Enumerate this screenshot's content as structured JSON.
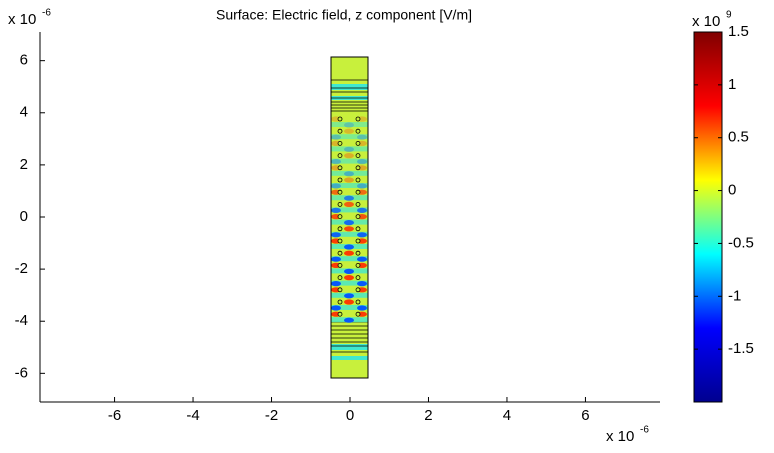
{
  "chart_data": {
    "type": "surface",
    "title": "Surface: Electric field, z component [V/m]",
    "x_exponent": {
      "base": "x 10",
      "power": "-6"
    },
    "y_exponent": {
      "base": "x 10",
      "power": "-6"
    },
    "xlim": [
      -7.9,
      7.9
    ],
    "xticks": [
      -6,
      -4,
      -2,
      0,
      2,
      4,
      6
    ],
    "ylim": [
      -7.1,
      7.1
    ],
    "yticks": [
      -6,
      -4,
      -2,
      0,
      2,
      4,
      6
    ],
    "colorbar": {
      "exponent": {
        "base": "x 10",
        "power": "9"
      },
      "lim": [
        -2,
        1.5
      ],
      "ticks": [
        1.5,
        1,
        0.5,
        0,
        -0.5,
        -1,
        -1.5
      ],
      "colormap": [
        "#00008f",
        "#0000ff",
        "#00ffff",
        "#ffff00",
        "#ff0000",
        "#800000"
      ]
    }
  }
}
